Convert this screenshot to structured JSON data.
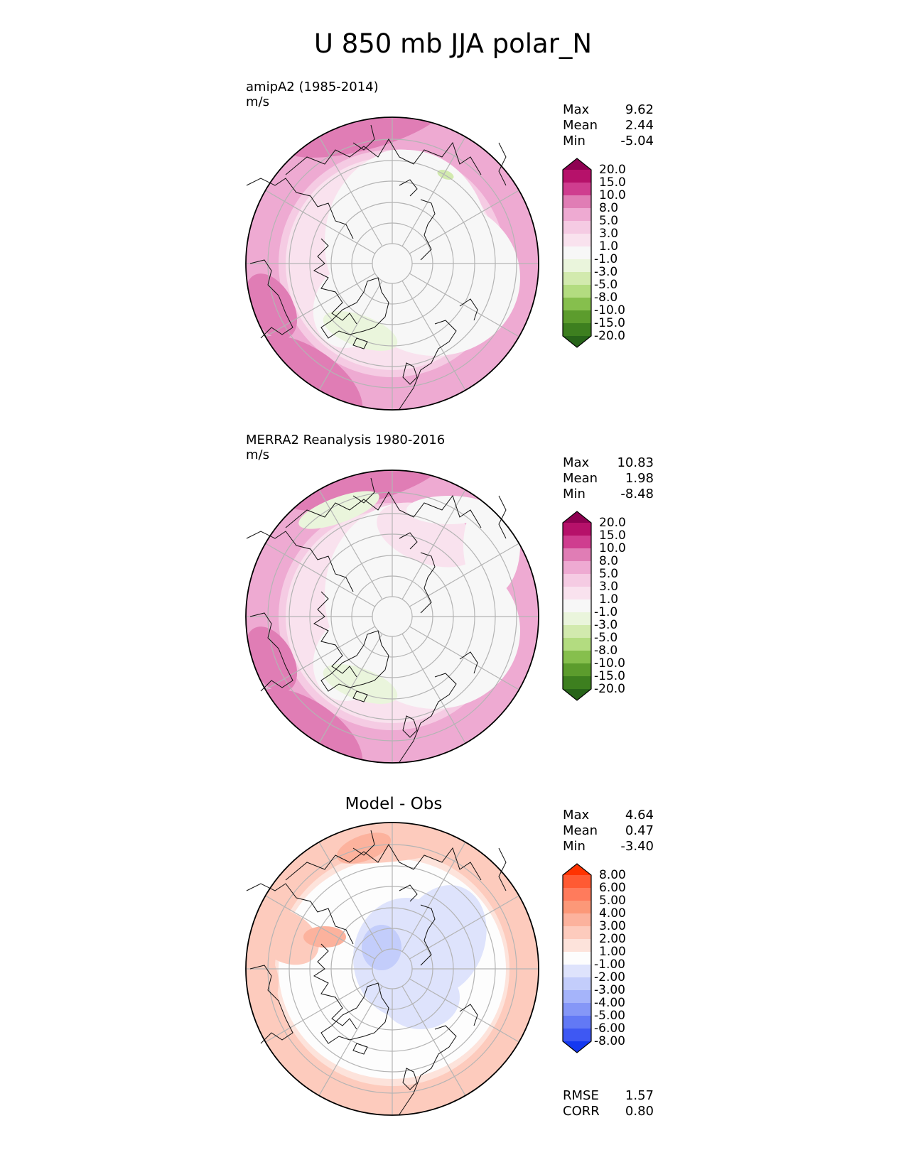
{
  "figure": {
    "title": "U 850 mb JJA polar_N"
  },
  "panels": [
    {
      "id": "test",
      "title_lines": [
        "amipA2 (1985-2014)",
        "m/s"
      ],
      "stats": [
        {
          "label": "Max",
          "value": "9.62"
        },
        {
          "label": "Mean",
          "value": "2.44"
        },
        {
          "label": "Min",
          "value": "-5.04"
        }
      ],
      "colorbar": {
        "labels": [
          "20.0",
          "15.0",
          "10.0",
          "8.0",
          "5.0",
          "3.0",
          "1.0",
          "-1.0",
          "-3.0",
          "-5.0",
          "-8.0",
          "-10.0",
          "-15.0",
          "-20.0"
        ],
        "colors": [
          "#8e0152",
          "#b6116a",
          "#cf3d8f",
          "#e07db5",
          "#eeaad2",
          "#f5cbe3",
          "#f9e2ee",
          "#f7f7f7",
          "#eaf5dc",
          "#d2eaae",
          "#b3dc80",
          "#86bf4d",
          "#5c9c2d",
          "#3d7f1f",
          "#276419"
        ]
      }
    },
    {
      "id": "reference",
      "title_lines": [
        "MERRA2 Reanalysis 1980-2016",
        "m/s"
      ],
      "stats": [
        {
          "label": "Max",
          "value": "10.83"
        },
        {
          "label": "Mean",
          "value": "1.98"
        },
        {
          "label": "Min",
          "value": "-8.48"
        }
      ],
      "colorbar": {
        "labels": [
          "20.0",
          "15.0",
          "10.0",
          "8.0",
          "5.0",
          "3.0",
          "1.0",
          "-1.0",
          "-3.0",
          "-5.0",
          "-8.0",
          "-10.0",
          "-15.0",
          "-20.0"
        ],
        "colors": [
          "#8e0152",
          "#b6116a",
          "#cf3d8f",
          "#e07db5",
          "#eeaad2",
          "#f5cbe3",
          "#f9e2ee",
          "#f7f7f7",
          "#eaf5dc",
          "#d2eaae",
          "#b3dc80",
          "#86bf4d",
          "#5c9c2d",
          "#3d7f1f",
          "#276419"
        ]
      }
    },
    {
      "id": "difference",
      "title_lines": [
        "Model - Obs"
      ],
      "stats": [
        {
          "label": "Max",
          "value": "4.64"
        },
        {
          "label": "Mean",
          "value": "0.47"
        },
        {
          "label": "Min",
          "value": "-3.40"
        }
      ],
      "colorbar": {
        "labels": [
          "8.00",
          "6.00",
          "5.00",
          "4.00",
          "3.00",
          "2.00",
          "1.00",
          "-1.00",
          "-2.00",
          "-3.00",
          "-4.00",
          "-5.00",
          "-6.00",
          "-8.00"
        ],
        "colors": [
          "#ff3300",
          "#ff5a33",
          "#ff7b5c",
          "#fc9878",
          "#fcb29d",
          "#fdcbbd",
          "#fde3db",
          "#fdfdfd",
          "#dee3fc",
          "#c3cdfb",
          "#a5b4fa",
          "#8597f7",
          "#6279f5",
          "#3e58f3",
          "#1438f0"
        ]
      },
      "metrics": [
        {
          "label": "RMSE",
          "value": "1.57"
        },
        {
          "label": "CORR",
          "value": "0.80"
        }
      ]
    }
  ]
}
